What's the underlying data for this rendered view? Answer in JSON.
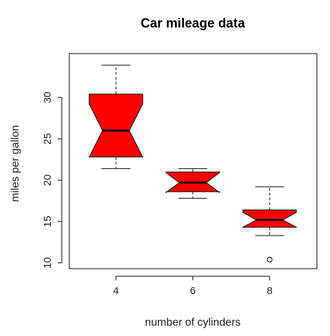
{
  "chart_data": {
    "type": "box",
    "title": "Car mileage data",
    "xlabel": "number of cylinders",
    "ylabel": "miles per gallon",
    "categories": [
      "4",
      "6",
      "8"
    ],
    "ylim": [
      9.3,
      35.3
    ],
    "yticks": [
      10,
      15,
      20,
      25,
      30
    ],
    "notched": true,
    "fill_color": "#ff0000",
    "boxes": [
      {
        "category": "4",
        "whisker_low": 21.4,
        "q1": 22.8,
        "median": 26.0,
        "q3": 30.4,
        "whisker_high": 33.9,
        "notch_low": 22.8,
        "notch_high": 29.2,
        "outliers": []
      },
      {
        "category": "6",
        "whisker_low": 17.8,
        "q1": 18.6,
        "median": 19.7,
        "q3": 21.0,
        "whisker_high": 21.4,
        "notch_low": 18.5,
        "notch_high": 20.9,
        "outliers": []
      },
      {
        "category": "8",
        "whisker_low": 13.3,
        "q1": 14.3,
        "median": 15.2,
        "q3": 16.4,
        "whisker_high": 19.2,
        "notch_low": 14.3,
        "notch_high": 16.1,
        "outliers": [
          10.4
        ]
      }
    ]
  }
}
